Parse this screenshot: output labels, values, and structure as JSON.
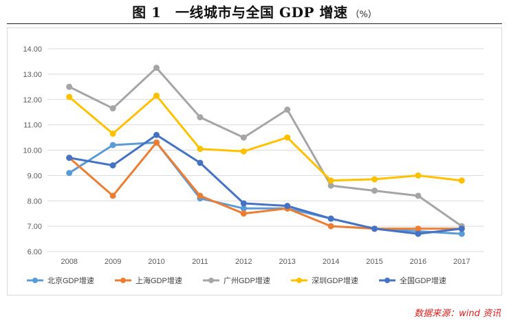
{
  "header": {
    "title": "图 1　一线城市与全国 GDP 增速",
    "unit": "（%）"
  },
  "source": "数据来源：wind 资讯",
  "chart_data": {
    "type": "line",
    "title": "",
    "xlabel": "",
    "ylabel": "",
    "categories": [
      "2008",
      "2009",
      "2010",
      "2011",
      "2012",
      "2013",
      "2014",
      "2015",
      "2016",
      "2017"
    ],
    "ylim": [
      6,
      14
    ],
    "yticks": [
      "6.00",
      "7.00",
      "8.00",
      "9.00",
      "10.00",
      "11.00",
      "12.00",
      "13.00",
      "14.00"
    ],
    "grid": true,
    "legend_position": "bottom",
    "series": [
      {
        "name": "北京GDP增速",
        "color": "#5b9bd5",
        "values": [
          9.1,
          10.2,
          10.3,
          8.1,
          7.7,
          7.7,
          7.3,
          6.9,
          6.8,
          6.7
        ]
      },
      {
        "name": "上海GDP增速",
        "color": "#ed7d31",
        "values": [
          9.7,
          8.2,
          10.3,
          8.2,
          7.5,
          7.7,
          7.0,
          6.9,
          6.9,
          6.9
        ]
      },
      {
        "name": "广州GDP增速",
        "color": "#a5a5a5",
        "values": [
          12.5,
          11.65,
          13.25,
          11.3,
          10.5,
          11.6,
          8.6,
          8.4,
          8.2,
          7.0
        ]
      },
      {
        "name": "深圳GDP增速",
        "color": "#ffc000",
        "values": [
          12.1,
          10.65,
          12.15,
          10.05,
          9.95,
          10.5,
          8.8,
          8.85,
          9.0,
          8.8
        ]
      },
      {
        "name": "全国GDP增速",
        "color": "#4472c4",
        "values": [
          9.7,
          9.4,
          10.6,
          9.5,
          7.9,
          7.8,
          7.3,
          6.9,
          6.7,
          6.9
        ]
      }
    ]
  }
}
